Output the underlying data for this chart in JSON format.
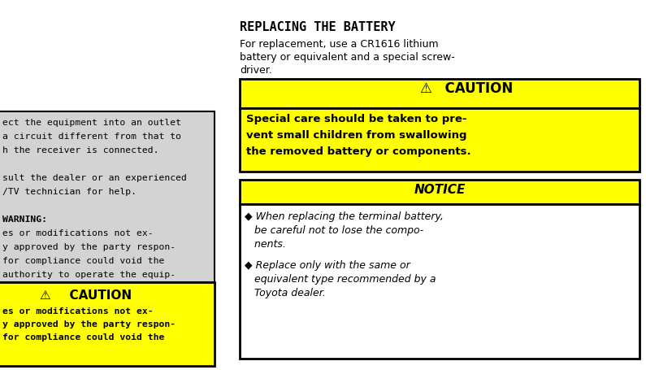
{
  "bg_color": "#ffffff",
  "left_panel_bg": "#d3d3d3",
  "left_panel_border": "#000000",
  "yellow_color": "#ffff00",
  "black": "#000000",
  "white": "#ffffff",
  "title": "REPLACING THE BATTERY",
  "caution_label": "  CAUTION",
  "notice_label": "NOTICE",
  "left_top_lines": [
    "ect the equipment into an outlet",
    "a circuit different from that to",
    "h the receiver is connected.",
    "",
    "sult the dealer or an experienced",
    "/TV technician for help.",
    "",
    "WARNING:",
    "es or modifications not ex-",
    "y approved by the party respon-",
    "for compliance could void the",
    "authority to operate the equip-"
  ],
  "left_bottom_label": "  CAUTION",
  "left_bottom_lines": [
    "es or modifications not ex-",
    "y approved by the party respon-",
    "for compliance could void the"
  ],
  "intro_lines": [
    "For replacement, use a CR1616 lithium",
    "battery or equivalent and a special screw-",
    "driver."
  ],
  "caution_body_lines": [
    "Special care should be taken to pre-",
    "vent small children from swallowing",
    "the removed battery or components."
  ],
  "notice_bullet1_lines": [
    "◆ When replacing the terminal battery,",
    "   be careful not to lose the compo-",
    "   nents."
  ],
  "notice_bullet2_lines": [
    "◆ Replace only with the same or",
    "   equivalent type recommended by a",
    "   Toyota dealer."
  ]
}
